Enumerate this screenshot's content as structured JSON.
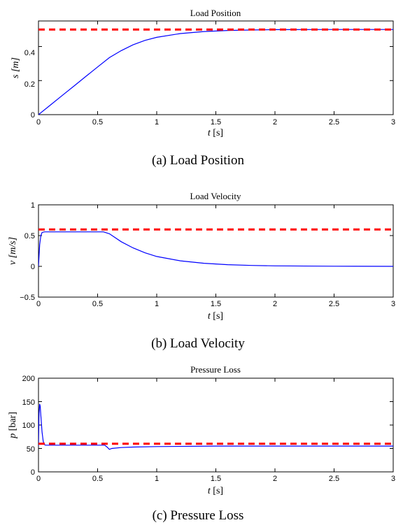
{
  "chart_data": [
    {
      "type": "line",
      "title": "Load Position",
      "caption": "(a)  Load Position",
      "xlabel_var": "t",
      "xlabel_unit": "[s]",
      "ylabel_var": "s",
      "ylabel_unit": "[m]",
      "xlim": [
        0,
        3
      ],
      "ylim": [
        0,
        0.55
      ],
      "xticks": [
        0,
        0.5,
        1,
        1.5,
        2,
        2.5,
        3
      ],
      "xtick_labels": [
        "0",
        "0.5",
        "1",
        "1.5",
        "2",
        "2.5",
        "3"
      ],
      "yticks": [
        0,
        0.2,
        0.4
      ],
      "ytick_labels": [
        "0",
        "0.2",
        "0.4"
      ],
      "series": [
        {
          "color": "#0000ff",
          "style": "solid",
          "x": [
            0,
            0.1,
            0.2,
            0.3,
            0.4,
            0.5,
            0.6,
            0.7,
            0.8,
            0.9,
            1.0,
            1.2,
            1.4,
            1.6,
            1.8,
            2.0,
            2.5,
            3.0
          ],
          "y": [
            0,
            0.056,
            0.112,
            0.168,
            0.224,
            0.28,
            0.335,
            0.376,
            0.41,
            0.436,
            0.454,
            0.476,
            0.488,
            0.494,
            0.497,
            0.499,
            0.5,
            0.5
          ]
        },
        {
          "color": "#ff0000",
          "style": "dashed",
          "x": [
            0,
            3
          ],
          "y": [
            0.5,
            0.5
          ]
        }
      ]
    },
    {
      "type": "line",
      "title": "Load Velocity",
      "caption": "(b)  Load Velocity",
      "xlabel_var": "t",
      "xlabel_unit": "[s]",
      "ylabel_var": "v",
      "ylabel_unit": "[m/s]",
      "xlim": [
        0,
        3
      ],
      "ylim": [
        -0.5,
        1
      ],
      "xticks": [
        0,
        0.5,
        1,
        1.5,
        2,
        2.5,
        3
      ],
      "xtick_labels": [
        "0",
        "0.5",
        "1",
        "1.5",
        "2",
        "2.5",
        "3"
      ],
      "yticks": [
        -0.5,
        0,
        0.5,
        1
      ],
      "ytick_labels": [
        "−0.5",
        "0",
        "0.5",
        "1"
      ],
      "series": [
        {
          "color": "#0000ff",
          "style": "solid",
          "x": [
            0,
            0.01,
            0.02,
            0.03,
            0.05,
            0.1,
            0.3,
            0.55,
            0.6,
            0.7,
            0.8,
            0.9,
            1.0,
            1.2,
            1.4,
            1.6,
            1.8,
            2.0,
            2.5,
            3.0
          ],
          "y": [
            0,
            0.35,
            0.5,
            0.55,
            0.56,
            0.56,
            0.56,
            0.56,
            0.53,
            0.4,
            0.3,
            0.22,
            0.16,
            0.09,
            0.05,
            0.027,
            0.015,
            0.008,
            0.002,
            0.0
          ]
        },
        {
          "color": "#ff0000",
          "style": "dashed",
          "x": [
            0,
            3
          ],
          "y": [
            0.6,
            0.6
          ]
        }
      ]
    },
    {
      "type": "line",
      "title": "Pressure Loss",
      "caption": "(c)  Pressure Loss",
      "xlabel_var": "t",
      "xlabel_unit": "[s]",
      "ylabel_var": "p",
      "ylabel_unit": "[bar]",
      "xlim": [
        0,
        3
      ],
      "ylim": [
        0,
        200
      ],
      "xticks": [
        0,
        0.5,
        1,
        1.5,
        2,
        2.5,
        3
      ],
      "xtick_labels": [
        "0",
        "0.5",
        "1",
        "1.5",
        "2",
        "2.5",
        "3"
      ],
      "yticks": [
        0,
        50,
        100,
        150,
        200
      ],
      "ytick_labels": [
        "0",
        "50",
        "100",
        "150",
        "200"
      ],
      "series": [
        {
          "color": "#0000ff",
          "style": "solid",
          "x": [
            0,
            0.005,
            0.01,
            0.015,
            0.02,
            0.03,
            0.04,
            0.05,
            0.06,
            0.1,
            0.3,
            0.56,
            0.58,
            0.6,
            0.62,
            0.7,
            0.8,
            1.0,
            1.5,
            2.0,
            3.0
          ],
          "y": [
            55,
            125,
            145,
            140,
            120,
            85,
            65,
            58,
            57,
            57,
            57,
            57,
            53,
            48,
            50,
            52,
            53,
            54,
            55,
            55,
            55
          ]
        },
        {
          "color": "#ff0000",
          "style": "dashed",
          "x": [
            0,
            3
          ],
          "y": [
            60,
            60
          ]
        }
      ]
    }
  ]
}
